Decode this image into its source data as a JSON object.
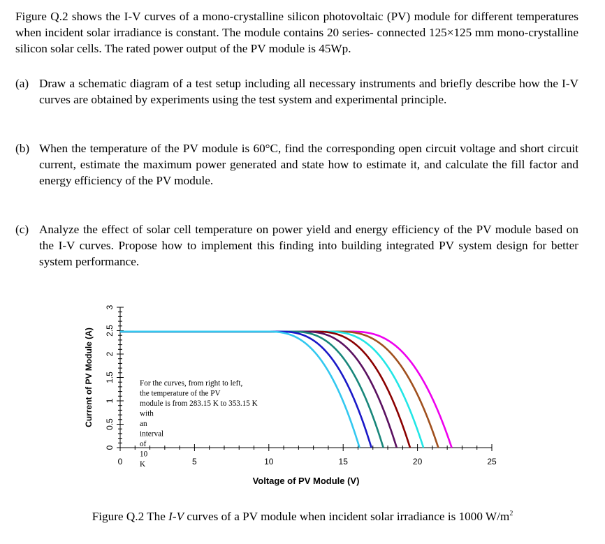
{
  "intro": {
    "text": "Figure Q.2 shows the I-V curves of a mono-crystalline silicon photovoltaic (PV) module for different temperatures when incident solar irradiance is constant. The module contains 20 series- connected 125×125 mm mono-crystalline silicon solar cells. The rated power output of the PV module is 45Wp."
  },
  "questions": [
    {
      "label": "(a)",
      "text": "Draw a schematic diagram of a test setup including all necessary instruments and briefly describe how the I-V curves are obtained by experiments using the test system and experimental principle."
    },
    {
      "label": "(b)",
      "text": "When the temperature of the PV module is 60°C, find the corresponding open circuit voltage and short circuit current, estimate the maximum power generated and state how to estimate it, and calculate the fill factor and energy efficiency of the PV module."
    },
    {
      "label": "(c)",
      "text": "Analyze the effect of solar cell temperature on power yield and energy efficiency of the PV module based on the I-V curves. Propose how to implement this finding into building integrated PV system design for better system performance."
    }
  ],
  "caption": {
    "prefix": "Figure Q.2 The ",
    "italic": "I-V",
    "suffix": " curves of a PV module when incident solar irradiance is 1000 W/m",
    "sup": "2"
  },
  "chart_data": {
    "type": "line",
    "title": "",
    "xlabel": "Voltage of PV Module (V)",
    "ylabel": "Current of PV Module (A)",
    "xlim": [
      0,
      25
    ],
    "ylim": [
      0,
      3
    ],
    "xticks": [
      "0",
      "5",
      "10",
      "15",
      "20",
      "25"
    ],
    "yticks": [
      "0",
      "0.5",
      "1",
      "1.5",
      "2",
      "2.5",
      "3"
    ],
    "grid": false,
    "annotation": "For the curves, from right to left, the temperature of the PV module is from 283.15 K to 353.15 K with an interval of 10 K",
    "isc": 2.48,
    "series": [
      {
        "voc": 22.3,
        "knee": 15.5,
        "color": "#ee00ee"
      },
      {
        "voc": 21.4,
        "knee": 14.7,
        "color": "#a0501e"
      },
      {
        "voc": 20.4,
        "knee": 13.9,
        "color": "#22e6e6"
      },
      {
        "voc": 19.5,
        "knee": 13.1,
        "color": "#8b0000"
      },
      {
        "voc": 18.6,
        "knee": 12.3,
        "color": "#5a1060"
      },
      {
        "voc": 17.7,
        "knee": 11.5,
        "color": "#18867a"
      },
      {
        "voc": 16.9,
        "knee": 10.7,
        "color": "#1a18c8"
      },
      {
        "voc": 16.1,
        "knee": 9.9,
        "color": "#33c8f0"
      }
    ]
  }
}
